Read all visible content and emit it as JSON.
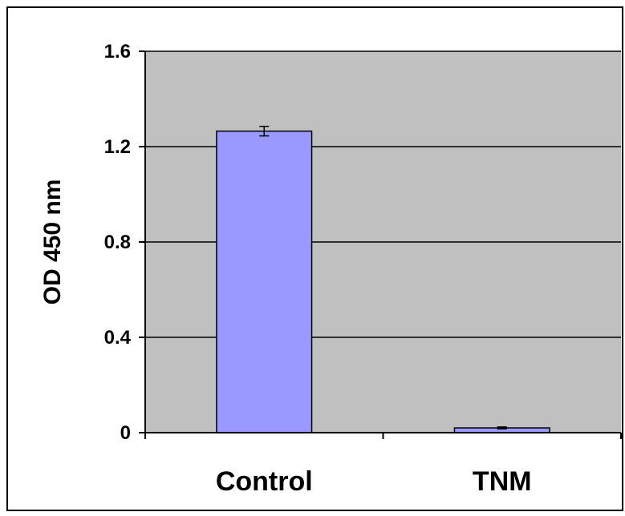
{
  "chart_data": {
    "type": "bar",
    "title": "",
    "xlabel": "",
    "ylabel": "OD 450 nm",
    "categories": [
      "Control",
      "TNM"
    ],
    "values": [
      1.265,
      0.02
    ],
    "errors": [
      0.02,
      0.004
    ],
    "ylim": [
      0,
      1.6
    ],
    "yticks": [
      "0",
      "0.4",
      "0.8",
      "1.2",
      "1.6"
    ],
    "ytick_values": [
      0,
      0.4,
      0.8,
      1.2,
      1.6
    ],
    "grid": true,
    "legend": "none",
    "colors": {
      "bar": "#9999ff",
      "plot_background": "#c0c0c0",
      "gridline": "#000000"
    }
  }
}
